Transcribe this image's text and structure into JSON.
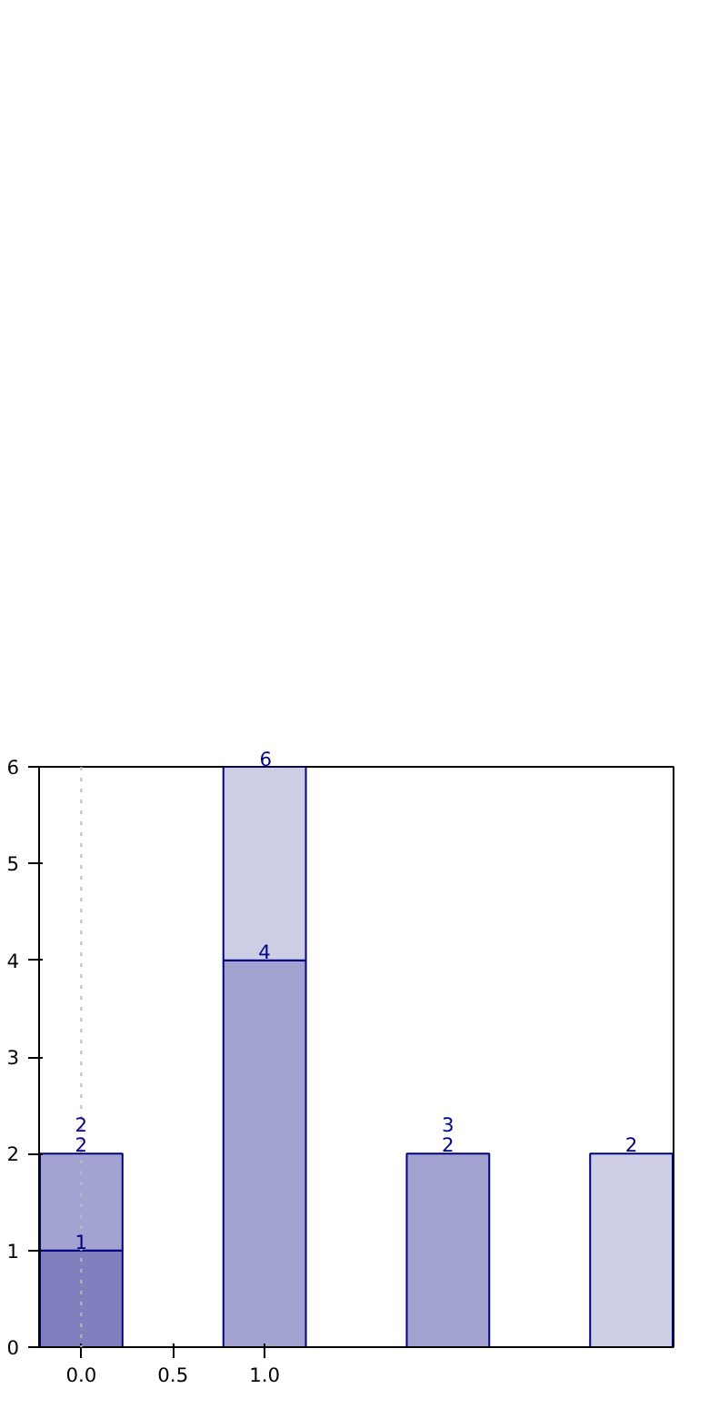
{
  "chart_data": {
    "type": "bar",
    "x": [
      0,
      1,
      2,
      3
    ],
    "stacked": true,
    "series": [
      {
        "color": "#8080bf",
        "values": [
          1,
          null,
          null,
          null
        ]
      },
      {
        "color": "#a3a3d1",
        "values": [
          1,
          4,
          2,
          null
        ]
      },
      {
        "color": "#cdcde6",
        "values": [
          null,
          2,
          null,
          2
        ]
      }
    ],
    "annotations": [
      {
        "text": "1",
        "x": 0,
        "y": 1
      },
      {
        "text": "2",
        "x": 0,
        "y": 2
      },
      {
        "text": "2",
        "x": 0,
        "y": 2
      },
      {
        "text": "4",
        "x": 1,
        "y": 4
      },
      {
        "text": "6",
        "x": 1,
        "y": 6
      },
      {
        "text": "2",
        "x": 2,
        "y": 2
      },
      {
        "text": "3",
        "x": 2,
        "y": 2
      },
      {
        "text": "2",
        "x": 3,
        "y": 2
      }
    ],
    "xlim": [
      -0.23,
      3.23
    ],
    "xticks": [
      {
        "value": 0,
        "label": "0.0"
      },
      {
        "value": 0.5,
        "label": "0.5"
      },
      {
        "value": 1,
        "label": "1.0"
      }
    ],
    "ylim": [
      0,
      6
    ],
    "yticks": [
      0,
      1,
      2,
      3,
      4,
      5,
      6
    ],
    "grid": false,
    "ref_lines": [
      {
        "axis": "x",
        "value": 0,
        "color": "#bbbbbb",
        "line_style": "dotted"
      }
    ]
  }
}
